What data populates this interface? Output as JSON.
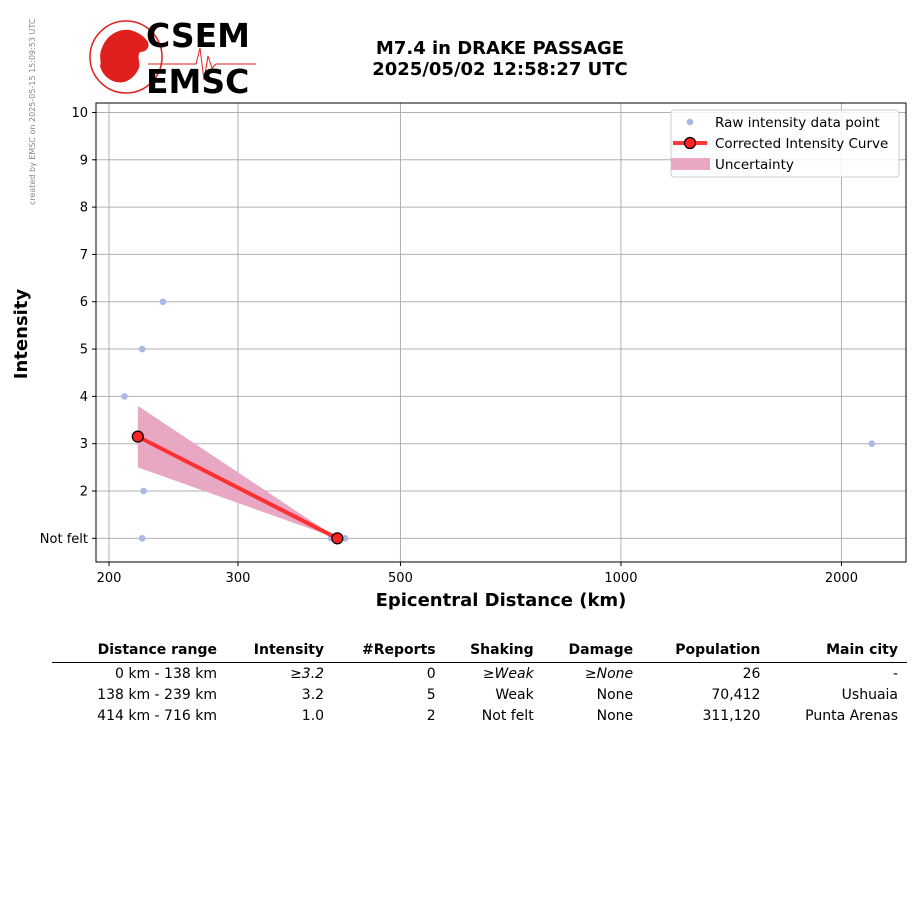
{
  "credit": "created by EMSC on 2025-05-15 15:09:53 UTC",
  "logo": {
    "line1": "CSEM",
    "line2": "EMSC",
    "color": "#e0201c"
  },
  "title": {
    "line1": "M7.4 in DRAKE PASSAGE",
    "line2": "2025/05/02 12:58:27 UTC"
  },
  "chart_data": {
    "type": "scatter",
    "xlabel": "Epicentral Distance (km)",
    "ylabel": "Intensity",
    "xscale": "log",
    "xlim": [
      192,
      2450
    ],
    "ylim": [
      0.5,
      10.2
    ],
    "xticks": [
      200,
      300,
      500,
      1000,
      2000
    ],
    "yticks": [
      {
        "v": 1,
        "label": "Not felt"
      },
      {
        "v": 2,
        "label": "2"
      },
      {
        "v": 3,
        "label": "3"
      },
      {
        "v": 4,
        "label": "4"
      },
      {
        "v": 5,
        "label": "5"
      },
      {
        "v": 6,
        "label": "6"
      },
      {
        "v": 7,
        "label": "7"
      },
      {
        "v": 8,
        "label": "8"
      },
      {
        "v": 9,
        "label": "9"
      },
      {
        "v": 10,
        "label": "10"
      }
    ],
    "grid": true,
    "legend_position": "top-right",
    "series": [
      {
        "name": "Raw intensity data point",
        "kind": "points",
        "color": "#aab8e6",
        "x": [
          210,
          222,
          223,
          222,
          237,
          402,
          420,
          2200
        ],
        "y": [
          4,
          5,
          2,
          1,
          6,
          1,
          1,
          3
        ]
      },
      {
        "name": "Corrected Intensity Curve",
        "kind": "line",
        "color": "#ff2222",
        "marker_edge": "#000000",
        "x": [
          219,
          410
        ],
        "y": [
          3.15,
          1.0
        ]
      },
      {
        "name": "Uncertainty",
        "kind": "band",
        "color": "#e8a8c4",
        "x": [
          219,
          410
        ],
        "upper": [
          3.8,
          1.0
        ],
        "lower": [
          2.5,
          1.0
        ]
      }
    ]
  },
  "table": {
    "headers": [
      "Distance range",
      "Intensity",
      "#Reports",
      "Shaking",
      "Damage",
      "Population",
      "Main city"
    ],
    "rows": [
      {
        "cells": [
          "0 km -  138 km",
          "≥3.2",
          "0",
          "≥Weak",
          "≥None",
          "26",
          "-"
        ],
        "italic": [
          1,
          3,
          4
        ]
      },
      {
        "cells": [
          "138 km -  239 km",
          "3.2",
          "5",
          "Weak",
          "None",
          "70,412",
          "Ushuaia"
        ],
        "italic": []
      },
      {
        "cells": [
          "414 km -  716 km",
          "1.0",
          "2",
          "Not felt",
          "None",
          "311,120",
          "Punta Arenas"
        ],
        "italic": []
      }
    ]
  }
}
